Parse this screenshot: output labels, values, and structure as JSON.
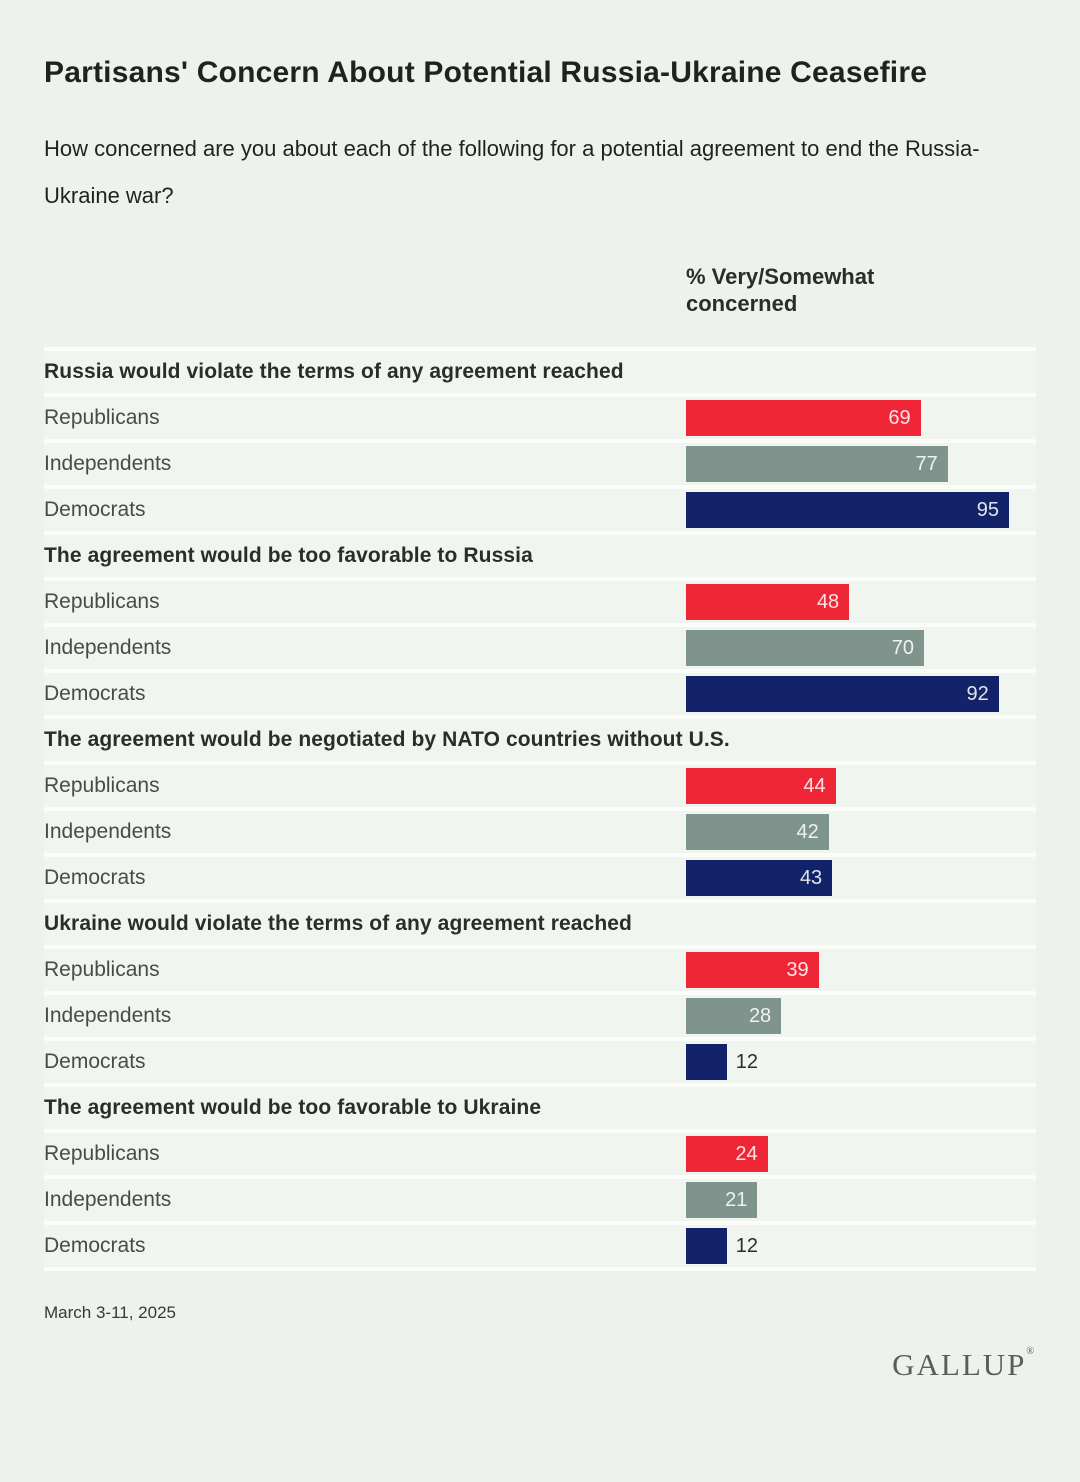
{
  "title": "Partisans' Concern About Potential Russia-Ukraine Ceasefire",
  "subtitle": "How concerned are you about each of the following for a potential agreement to end the Russia-Ukraine war?",
  "column_header_line1": "% Very/Somewhat",
  "column_header_line2": "concerned",
  "footer": {
    "date": "March 3-11, 2025",
    "brand": "GALLUP",
    "brand_reg": "®"
  },
  "colors": {
    "background": "#edf3ec",
    "row_band": "#f0f5ef",
    "separator": "#fbfdf9",
    "republicans": "#ee2636",
    "independents": "#7e948c",
    "democrats": "#132369"
  },
  "chart_data": {
    "type": "bar",
    "orientation": "horizontal",
    "title": "Partisans' Concern About Potential Russia-Ukraine Ceasefire",
    "value_label": "% Very/Somewhat concerned",
    "xlim": [
      0,
      100
    ],
    "categories": [
      "Republicans",
      "Independents",
      "Democrats"
    ],
    "series_colors": {
      "Republicans": "#ee2636",
      "Independents": "#7e948c",
      "Democrats": "#132369"
    },
    "groups": [
      {
        "statement": "Russia would violate the terms of any agreement reached",
        "bars": [
          {
            "party": "Republicans",
            "value": 69
          },
          {
            "party": "Independents",
            "value": 77
          },
          {
            "party": "Democrats",
            "value": 95
          }
        ]
      },
      {
        "statement": "The agreement would be too favorable to Russia",
        "bars": [
          {
            "party": "Republicans",
            "value": 48
          },
          {
            "party": "Independents",
            "value": 70
          },
          {
            "party": "Democrats",
            "value": 92
          }
        ]
      },
      {
        "statement": "The agreement would be negotiated by NATO countries without U.S.",
        "bars": [
          {
            "party": "Republicans",
            "value": 44
          },
          {
            "party": "Independents",
            "value": 42
          },
          {
            "party": "Democrats",
            "value": 43
          }
        ]
      },
      {
        "statement": "Ukraine would violate the terms of any agreement reached",
        "bars": [
          {
            "party": "Republicans",
            "value": 39
          },
          {
            "party": "Independents",
            "value": 28
          },
          {
            "party": "Democrats",
            "value": 12
          }
        ]
      },
      {
        "statement": "The agreement would be too favorable to Ukraine",
        "bars": [
          {
            "party": "Republicans",
            "value": 24
          },
          {
            "party": "Independents",
            "value": 21
          },
          {
            "party": "Democrats",
            "value": 12
          }
        ]
      }
    ],
    "footnote_date": "March 3-11, 2025",
    "source_brand": "GALLUP"
  }
}
